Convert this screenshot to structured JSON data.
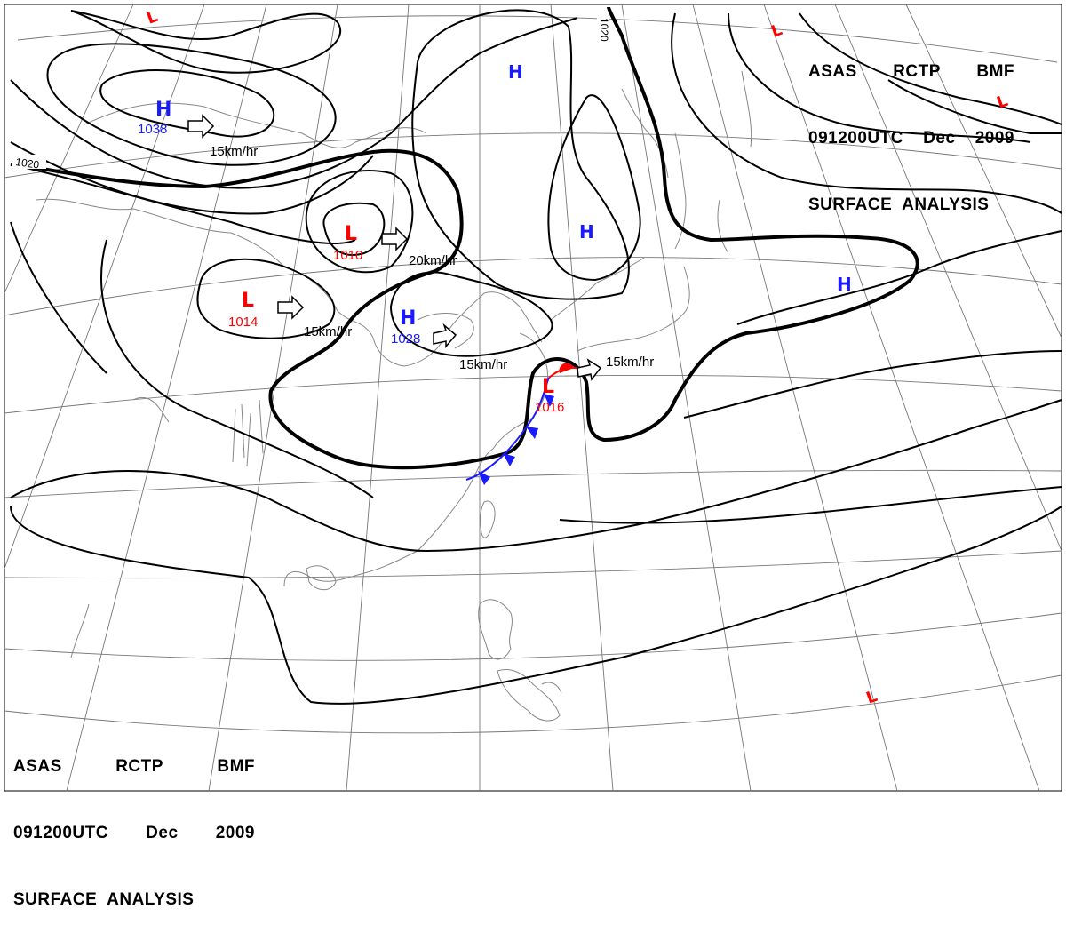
{
  "header_top": {
    "line1": [
      "ASAS",
      "RCTP",
      "BMF"
    ],
    "line2": [
      "091200UTC",
      "Dec",
      "2009"
    ],
    "line3": "SURFACE  ANALYSIS"
  },
  "header_bottom": {
    "line1": [
      "ASAS",
      "RCTP",
      "BMF"
    ],
    "line2": [
      "091200UTC",
      "Dec",
      "2009"
    ],
    "line3": "SURFACE  ANALYSIS"
  },
  "colors": {
    "high": "#1a1aff",
    "low": "#ff0000",
    "isobar": "#000000",
    "coast": "#888888",
    "grid": "#777777"
  },
  "pressure_centers": [
    {
      "id": "h-1038",
      "type": "H",
      "value": "1038"
    },
    {
      "id": "h-north",
      "type": "H",
      "value": ""
    },
    {
      "id": "h-mid",
      "type": "H",
      "value": ""
    },
    {
      "id": "h-east",
      "type": "H",
      "value": ""
    },
    {
      "id": "h-1028",
      "type": "H",
      "value": "1028"
    },
    {
      "id": "l-1010",
      "type": "L",
      "value": "1010"
    },
    {
      "id": "l-1014",
      "type": "L",
      "value": "1014"
    },
    {
      "id": "l-1016",
      "type": "L",
      "value": "1016"
    },
    {
      "id": "l-top",
      "type": "L",
      "value": ""
    },
    {
      "id": "l-ne1",
      "type": "L",
      "value": ""
    },
    {
      "id": "l-ne2",
      "type": "L",
      "value": ""
    },
    {
      "id": "l-se",
      "type": "L",
      "value": ""
    }
  ],
  "motion_labels": [
    "15km/hr",
    "20km/hr",
    "15km/hr",
    "15km/hr",
    "15km/hr"
  ],
  "isobar_labels": [
    "1020",
    "1020"
  ]
}
